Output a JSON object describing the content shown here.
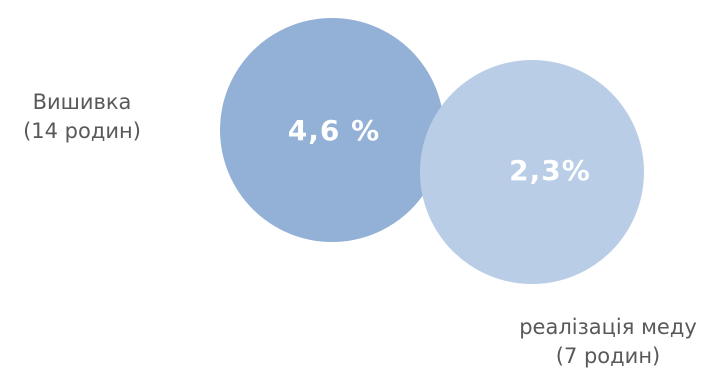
{
  "items": [
    {
      "name": "Вишивка",
      "families": "(14 родин)",
      "percent": "4,6 %",
      "color": "#93b0d6"
    },
    {
      "name": "реалізація меду",
      "families": "(7 родин)",
      "percent": "2,3%",
      "color": "#b9cde6"
    }
  ]
}
